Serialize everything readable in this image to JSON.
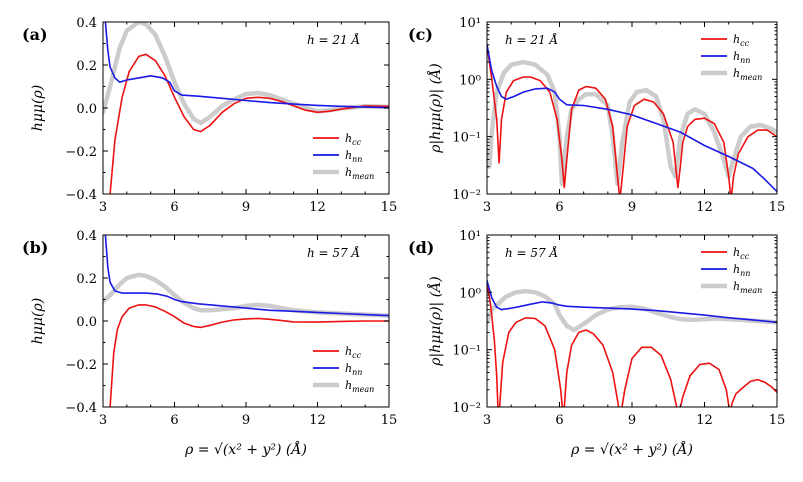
{
  "figure": {
    "xlabel": "ρ = √(x² + y²) (Å)",
    "ylabel_linear": "hμμ(ρ)",
    "ylabel_log": "ρ|hμμ(ρ)| (Å)"
  },
  "chart_data": [
    {
      "panel": "(a)",
      "type": "line",
      "annotation": "h = 21 Å",
      "xlim": [
        3,
        15
      ],
      "ylim": [
        -0.4,
        0.4
      ],
      "yscale": "linear",
      "xticks": [
        "3",
        "6",
        "9",
        "12",
        "15"
      ],
      "yticks": [
        "−0.4",
        "−0.2",
        "0.0",
        "0.2",
        "0.4"
      ],
      "legend_position": "lower-right",
      "series": [
        {
          "name": "h_cc",
          "color": "#ee1111",
          "x": [
            3.3,
            3.5,
            3.8,
            4.1,
            4.5,
            4.8,
            5.2,
            5.6,
            6.0,
            6.4,
            6.8,
            7.1,
            7.5,
            8.0,
            8.5,
            9.0,
            9.5,
            10.0,
            10.5,
            11.0,
            11.5,
            12.0,
            12.5,
            13.0,
            14.0,
            15.0
          ],
          "y": [
            -0.4,
            -0.15,
            0.05,
            0.17,
            0.24,
            0.25,
            0.22,
            0.15,
            0.05,
            -0.04,
            -0.1,
            -0.11,
            -0.08,
            -0.02,
            0.02,
            0.045,
            0.05,
            0.045,
            0.03,
            0.01,
            -0.01,
            -0.02,
            -0.015,
            -0.005,
            0.01,
            0.008
          ]
        },
        {
          "name": "h_nn",
          "color": "#1a1ae6",
          "x": [
            3.1,
            3.2,
            3.3,
            3.5,
            3.7,
            4.0,
            4.5,
            5.0,
            5.5,
            5.8,
            6.0,
            6.3,
            7.0,
            8.0,
            9.0,
            10.0,
            11.0,
            12.0,
            13.0,
            14.0,
            15.0
          ],
          "y": [
            0.4,
            0.27,
            0.19,
            0.14,
            0.12,
            0.13,
            0.14,
            0.15,
            0.14,
            0.12,
            0.08,
            0.06,
            0.055,
            0.045,
            0.035,
            0.025,
            0.018,
            0.012,
            0.008,
            0.004,
            0.002
          ]
        },
        {
          "name": "h_mean",
          "color": "#cccccc",
          "x": [
            3.0,
            3.3,
            3.7,
            4.0,
            4.5,
            4.8,
            5.2,
            5.6,
            6.0,
            6.4,
            6.8,
            7.1,
            7.5,
            8.0,
            8.5,
            9.0,
            9.5,
            10.0,
            10.5,
            11.0,
            11.5,
            12.0,
            12.5,
            13.0,
            14.0,
            15.0
          ],
          "y": [
            -0.02,
            0.1,
            0.28,
            0.36,
            0.4,
            0.39,
            0.34,
            0.24,
            0.12,
            0.02,
            -0.05,
            -0.07,
            -0.04,
            0.01,
            0.04,
            0.065,
            0.07,
            0.06,
            0.04,
            0.02,
            0.0,
            -0.015,
            -0.01,
            -0.002,
            0.008,
            0.005
          ]
        }
      ]
    },
    {
      "panel": "(b)",
      "type": "line",
      "annotation": "h = 57 Å",
      "xlim": [
        3,
        15
      ],
      "ylim": [
        -0.4,
        0.4
      ],
      "yscale": "linear",
      "xticks": [
        "3",
        "6",
        "9",
        "12",
        "15"
      ],
      "yticks": [
        "−0.4",
        "−0.2",
        "0.0",
        "0.2",
        "0.4"
      ],
      "legend_position": "lower-right",
      "series": [
        {
          "name": "h_cc",
          "color": "#ee1111",
          "x": [
            3.3,
            3.45,
            3.6,
            3.8,
            4.1,
            4.5,
            4.8,
            5.2,
            5.6,
            6.0,
            6.4,
            6.8,
            7.1,
            7.5,
            8.0,
            8.5,
            9.0,
            9.5,
            10.0,
            10.5,
            11.0,
            12.0,
            13.0,
            14.0,
            15.0
          ],
          "y": [
            -0.4,
            -0.15,
            -0.04,
            0.02,
            0.06,
            0.075,
            0.075,
            0.065,
            0.045,
            0.02,
            -0.01,
            -0.025,
            -0.03,
            -0.02,
            -0.005,
            0.005,
            0.01,
            0.012,
            0.008,
            0.002,
            -0.004,
            -0.005,
            -0.002,
            0.0,
            0.0
          ]
        },
        {
          "name": "h_nn",
          "color": "#1a1ae6",
          "x": [
            3.1,
            3.2,
            3.3,
            3.5,
            3.8,
            4.2,
            4.8,
            5.3,
            5.7,
            6.0,
            6.3,
            7.0,
            8.0,
            9.0,
            10.0,
            11.0,
            12.0,
            13.0,
            14.0,
            15.0
          ],
          "y": [
            0.4,
            0.25,
            0.18,
            0.14,
            0.13,
            0.13,
            0.13,
            0.125,
            0.115,
            0.1,
            0.09,
            0.08,
            0.07,
            0.06,
            0.05,
            0.045,
            0.04,
            0.035,
            0.03,
            0.025
          ]
        },
        {
          "name": "h_mean",
          "color": "#cccccc",
          "x": [
            3.0,
            3.3,
            3.7,
            4.0,
            4.5,
            4.8,
            5.2,
            5.6,
            6.0,
            6.4,
            6.8,
            7.1,
            7.5,
            8.0,
            8.5,
            9.0,
            9.5,
            10.0,
            10.5,
            11.0,
            12.0,
            13.0,
            14.0,
            15.0
          ],
          "y": [
            0.09,
            0.12,
            0.17,
            0.2,
            0.215,
            0.21,
            0.19,
            0.16,
            0.12,
            0.085,
            0.06,
            0.05,
            0.05,
            0.055,
            0.06,
            0.07,
            0.075,
            0.07,
            0.06,
            0.05,
            0.04,
            0.035,
            0.03,
            0.025
          ]
        }
      ]
    },
    {
      "panel": "(c)",
      "type": "line",
      "annotation": "h = 21 Å",
      "xlim": [
        3,
        15
      ],
      "ylim": [
        0.01,
        10
      ],
      "yscale": "log",
      "xticks": [
        "3",
        "6",
        "9",
        "12",
        "15"
      ],
      "yticks": [
        "10⁻²",
        "10⁻¹",
        "10⁰",
        "10¹"
      ],
      "legend_position": "upper-right",
      "series": [
        {
          "name": "h_cc",
          "color": "#ee1111",
          "x": [
            3.0,
            3.2,
            3.4,
            3.5,
            3.6,
            3.8,
            4.1,
            4.5,
            4.8,
            5.2,
            5.6,
            5.9,
            6.1,
            6.2,
            6.3,
            6.5,
            6.8,
            7.1,
            7.5,
            7.9,
            8.2,
            8.4,
            8.5,
            8.6,
            8.8,
            9.1,
            9.5,
            9.9,
            10.3,
            10.7,
            10.9,
            11.0,
            11.1,
            11.3,
            11.6,
            12.0,
            12.4,
            12.8,
            13.0,
            13.1,
            13.2,
            13.4,
            13.8,
            14.2,
            14.6,
            15.0
          ],
          "y": [
            4.0,
            1.0,
            0.2,
            0.035,
            0.2,
            0.6,
            0.95,
            1.1,
            1.1,
            0.95,
            0.6,
            0.2,
            0.04,
            0.013,
            0.04,
            0.3,
            0.65,
            0.75,
            0.7,
            0.45,
            0.15,
            0.02,
            0.008,
            0.02,
            0.15,
            0.35,
            0.45,
            0.4,
            0.25,
            0.08,
            0.013,
            0.03,
            0.08,
            0.15,
            0.2,
            0.21,
            0.17,
            0.08,
            0.02,
            0.008,
            0.02,
            0.05,
            0.1,
            0.13,
            0.13,
            0.1
          ]
        },
        {
          "name": "h_nn",
          "color": "#1a1ae6",
          "x": [
            3.0,
            3.2,
            3.4,
            3.6,
            3.8,
            4.1,
            4.5,
            5.0,
            5.5,
            5.8,
            6.0,
            6.3,
            7.0,
            8.0,
            9.0,
            10.0,
            11.0,
            12.0,
            13.0,
            14.0,
            14.5,
            15.0
          ],
          "y": [
            4.0,
            1.4,
            0.75,
            0.5,
            0.45,
            0.5,
            0.6,
            0.68,
            0.7,
            0.6,
            0.45,
            0.36,
            0.35,
            0.3,
            0.24,
            0.17,
            0.12,
            0.07,
            0.045,
            0.028,
            0.018,
            0.011
          ]
        },
        {
          "name": "h_mean",
          "color": "#cccccc",
          "x": [
            3.0,
            3.1,
            3.2,
            3.4,
            3.7,
            4.0,
            4.5,
            5.0,
            5.5,
            5.8,
            6.0,
            6.1,
            6.3,
            6.5,
            6.8,
            7.1,
            7.5,
            8.0,
            8.2,
            8.4,
            8.6,
            8.9,
            9.2,
            9.6,
            10.0,
            10.3,
            10.6,
            10.8,
            11.0,
            11.3,
            11.6,
            12.0,
            12.4,
            12.8,
            13.0,
            13.2,
            13.5,
            13.9,
            14.3,
            14.7,
            15.0
          ],
          "y": [
            0.06,
            0.03,
            0.12,
            0.6,
            1.3,
            1.8,
            2.0,
            1.8,
            1.2,
            0.6,
            0.1,
            0.015,
            0.1,
            0.3,
            0.45,
            0.55,
            0.55,
            0.35,
            0.1,
            0.015,
            0.08,
            0.4,
            0.6,
            0.65,
            0.5,
            0.2,
            0.03,
            0.02,
            0.1,
            0.25,
            0.3,
            0.25,
            0.12,
            0.04,
            0.02,
            0.04,
            0.1,
            0.15,
            0.16,
            0.14,
            0.12
          ]
        }
      ]
    },
    {
      "panel": "(d)",
      "type": "line",
      "annotation": "h = 57 Å",
      "xlim": [
        3,
        15
      ],
      "ylim": [
        0.01,
        10
      ],
      "yscale": "log",
      "xticks": [
        "3",
        "6",
        "9",
        "12",
        "15"
      ],
      "yticks": [
        "10⁻²",
        "10⁻¹",
        "10⁰",
        "10¹"
      ],
      "legend_position": "upper-right",
      "series": [
        {
          "name": "h_cc",
          "color": "#ee1111",
          "x": [
            3.0,
            3.15,
            3.3,
            3.4,
            3.45,
            3.5,
            3.55,
            3.65,
            3.9,
            4.2,
            4.6,
            5.0,
            5.4,
            5.8,
            6.05,
            6.15,
            6.2,
            6.3,
            6.5,
            6.8,
            7.1,
            7.4,
            7.8,
            8.2,
            8.45,
            8.55,
            8.7,
            9.0,
            9.4,
            9.8,
            10.2,
            10.6,
            10.85,
            10.95,
            11.1,
            11.4,
            11.8,
            12.2,
            12.6,
            12.9,
            13.05,
            13.15,
            13.3,
            13.6,
            13.9,
            14.2,
            14.5,
            14.8,
            15.0
          ],
          "y": [
            1.5,
            0.6,
            0.15,
            0.035,
            0.01,
            0.007,
            0.015,
            0.06,
            0.2,
            0.3,
            0.36,
            0.35,
            0.26,
            0.1,
            0.02,
            0.007,
            0.01,
            0.04,
            0.12,
            0.2,
            0.22,
            0.19,
            0.12,
            0.04,
            0.01,
            0.008,
            0.02,
            0.07,
            0.11,
            0.11,
            0.08,
            0.03,
            0.01,
            0.008,
            0.015,
            0.035,
            0.055,
            0.058,
            0.045,
            0.02,
            0.008,
            0.012,
            0.017,
            0.022,
            0.028,
            0.03,
            0.027,
            0.022,
            0.018
          ]
        },
        {
          "name": "h_nn",
          "color": "#1a1ae6",
          "x": [
            3.0,
            3.2,
            3.4,
            3.6,
            3.9,
            4.3,
            4.8,
            5.3,
            5.7,
            6.0,
            6.3,
            7.0,
            8.0,
            9.0,
            10.0,
            11.0,
            12.0,
            13.0,
            14.0,
            15.0
          ],
          "y": [
            1.6,
            0.8,
            0.55,
            0.5,
            0.52,
            0.56,
            0.62,
            0.68,
            0.65,
            0.6,
            0.57,
            0.55,
            0.53,
            0.51,
            0.48,
            0.44,
            0.4,
            0.36,
            0.33,
            0.3
          ]
        },
        {
          "name": "h_mean",
          "color": "#cccccc",
          "x": [
            3.0,
            3.2,
            3.5,
            3.8,
            4.2,
            4.6,
            5.0,
            5.4,
            5.8,
            6.0,
            6.3,
            6.6,
            7.0,
            7.5,
            8.0,
            8.5,
            9.0,
            9.5,
            10.0,
            10.5,
            11.0,
            11.5,
            12.0,
            12.5,
            13.0,
            13.5,
            14.0,
            15.0
          ],
          "y": [
            0.3,
            0.5,
            0.65,
            0.85,
            1.0,
            1.05,
            1.0,
            0.85,
            0.62,
            0.4,
            0.26,
            0.22,
            0.28,
            0.4,
            0.5,
            0.55,
            0.56,
            0.52,
            0.44,
            0.38,
            0.34,
            0.33,
            0.34,
            0.35,
            0.34,
            0.33,
            0.32,
            0.3
          ]
        }
      ]
    }
  ]
}
